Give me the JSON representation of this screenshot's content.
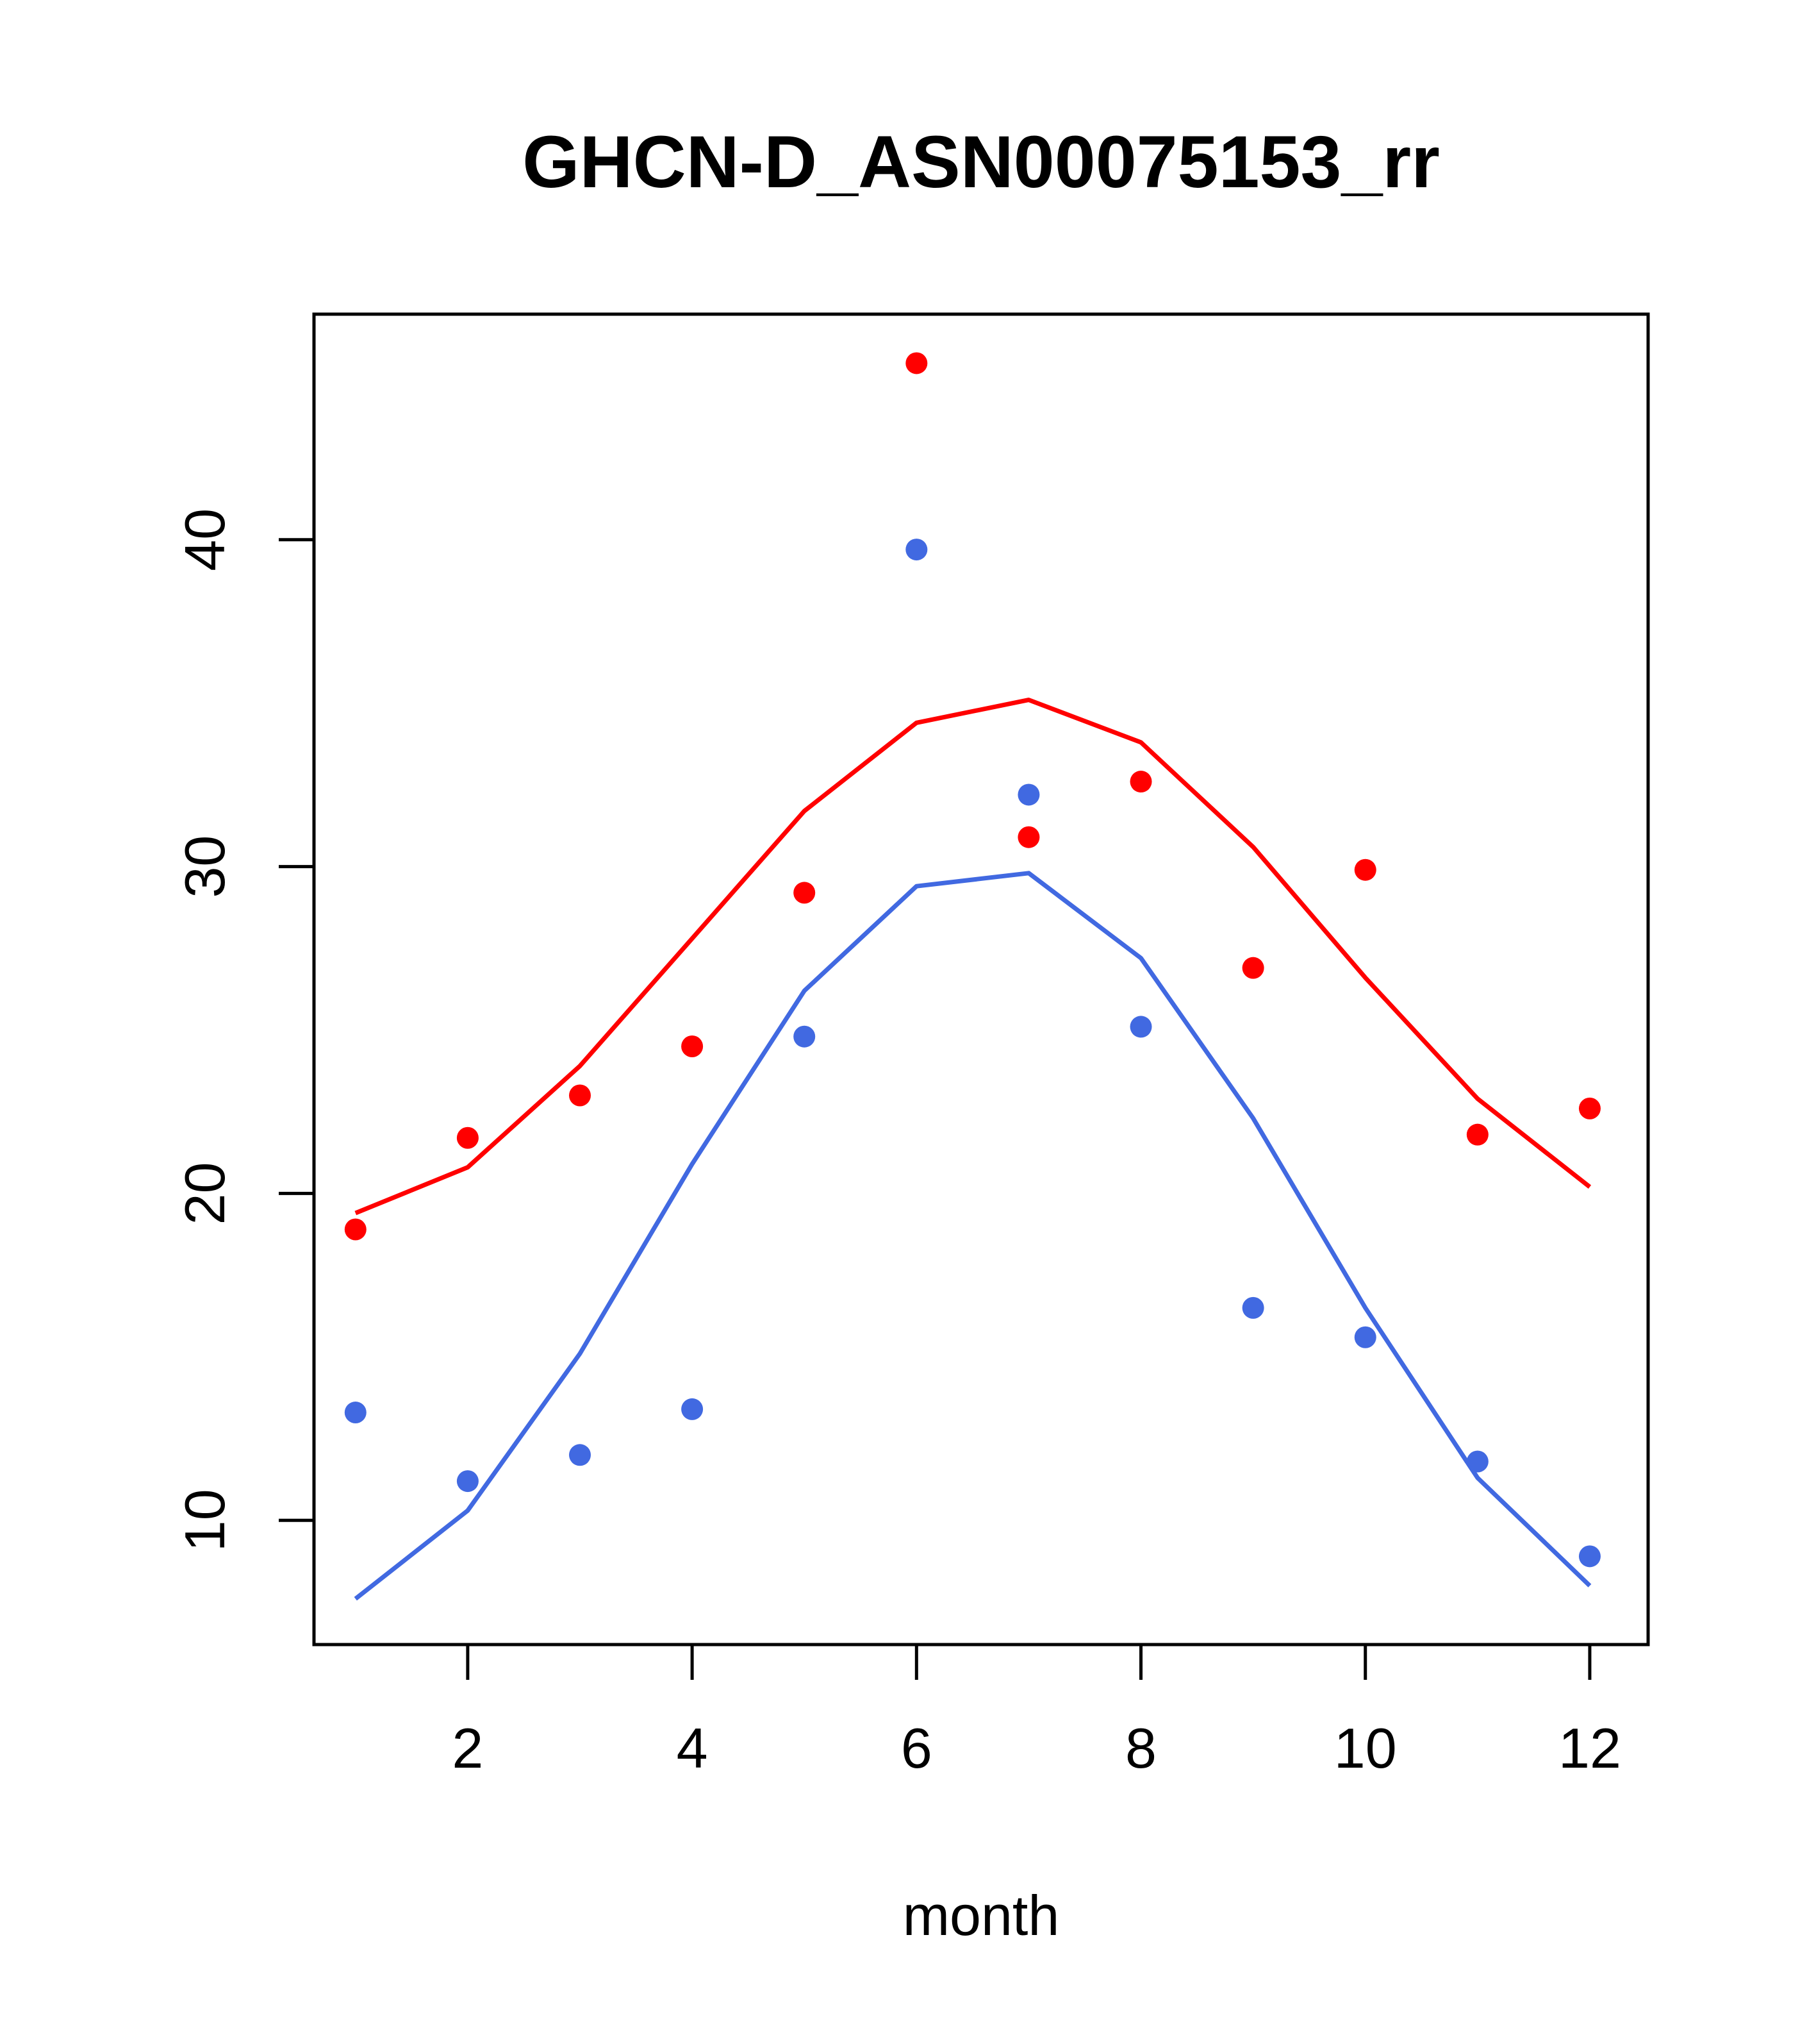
{
  "chart_data": {
    "type": "scatter",
    "title": "GHCN-D_ASN00075153_rr",
    "xlabel": "month",
    "ylabel": "",
    "xlim": [
      0.63,
      12.52
    ],
    "ylim": [
      6.2,
      46.9
    ],
    "x_ticks": [
      2,
      4,
      6,
      8,
      10,
      12
    ],
    "x_tick_labels": [
      "2",
      "4",
      "6",
      "8",
      "10",
      "12"
    ],
    "y_ticks": [
      10,
      20,
      30,
      40
    ],
    "y_tick_labels": [
      "10",
      "20",
      "30",
      "40"
    ],
    "grid": false,
    "legend": "none",
    "x": [
      1,
      2,
      3,
      4,
      5,
      6,
      7,
      8,
      9,
      10,
      11,
      12
    ],
    "series": [
      {
        "color": "#ff0000",
        "points": [
          18.9,
          21.7,
          23.0,
          24.5,
          29.2,
          45.4,
          30.9,
          32.6,
          26.9,
          29.9,
          21.8,
          22.6
        ],
        "line": [
          19.4,
          20.8,
          23.9,
          27.8,
          31.7,
          34.4,
          35.1,
          33.8,
          30.6,
          26.6,
          22.9,
          20.2
        ]
      },
      {
        "color": "#4169e1",
        "points": [
          13.3,
          11.2,
          12.0,
          13.4,
          24.8,
          39.7,
          32.2,
          25.1,
          16.5,
          15.6,
          11.8,
          8.9
        ],
        "line": [
          7.6,
          10.3,
          15.1,
          20.9,
          26.2,
          29.4,
          29.8,
          27.2,
          22.3,
          16.5,
          11.3,
          8.0
        ]
      }
    ]
  }
}
